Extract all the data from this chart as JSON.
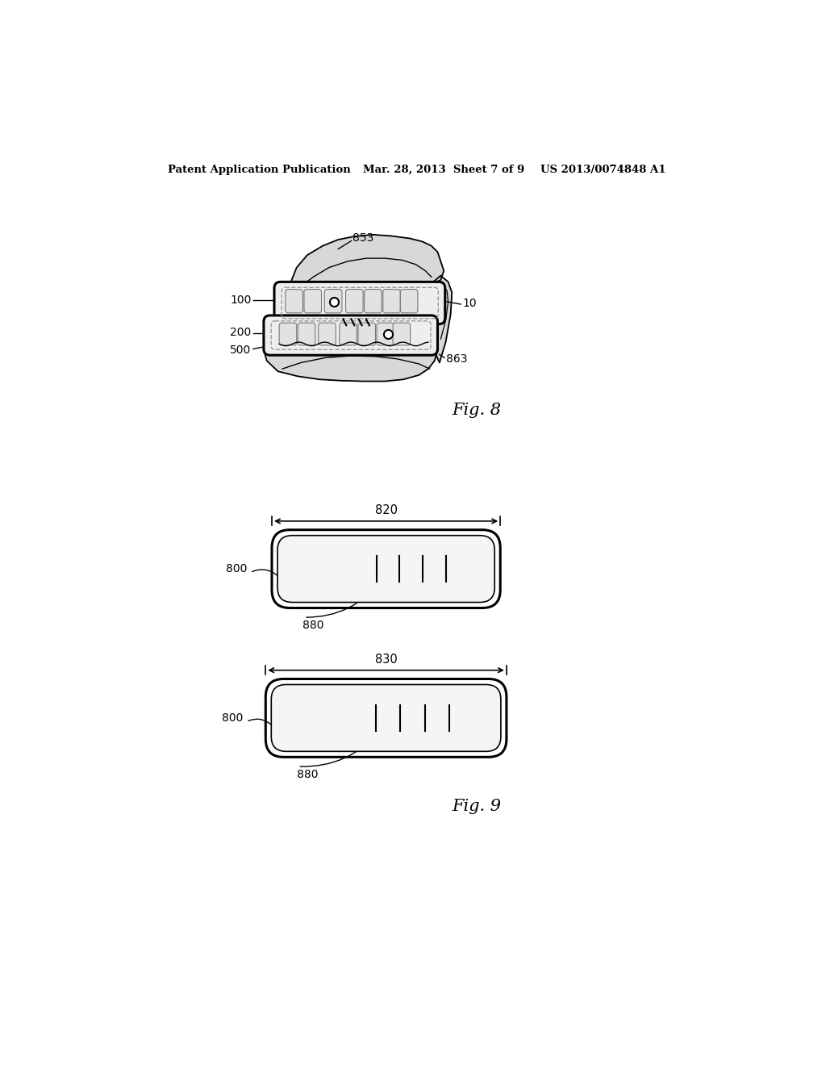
{
  "bg_color": "#ffffff",
  "header_left": "Patent Application Publication",
  "header_center": "Mar. 28, 2013  Sheet 7 of 9",
  "header_right": "US 2013/0074848 A1",
  "fig8_label": "Fig. 8",
  "fig9_label": "Fig. 9",
  "bar1_label": "820",
  "bar2_label": "830",
  "bar_label_800": "800",
  "bar_label_880": "880"
}
